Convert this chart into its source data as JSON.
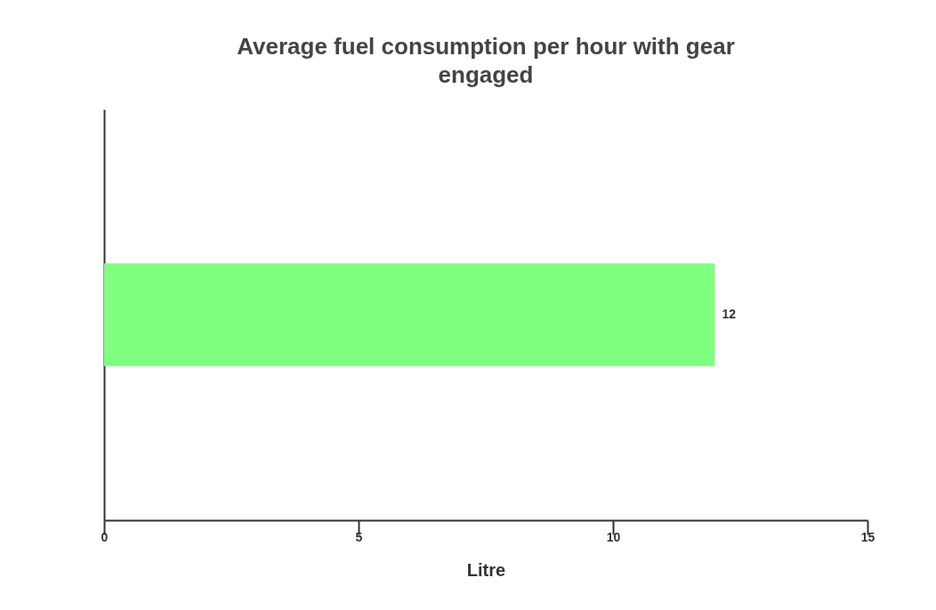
{
  "chart_data": {
    "type": "bar",
    "orientation": "horizontal",
    "title": "Average fuel consumption per hour with gear engaged",
    "xlabel": "Litre",
    "categories": [
      null
    ],
    "values": [
      12
    ],
    "color": "#80ff80",
    "xlim": [
      0,
      15
    ],
    "xticks": [
      0,
      5,
      10,
      15
    ],
    "data_labels": true,
    "grid": false
  }
}
